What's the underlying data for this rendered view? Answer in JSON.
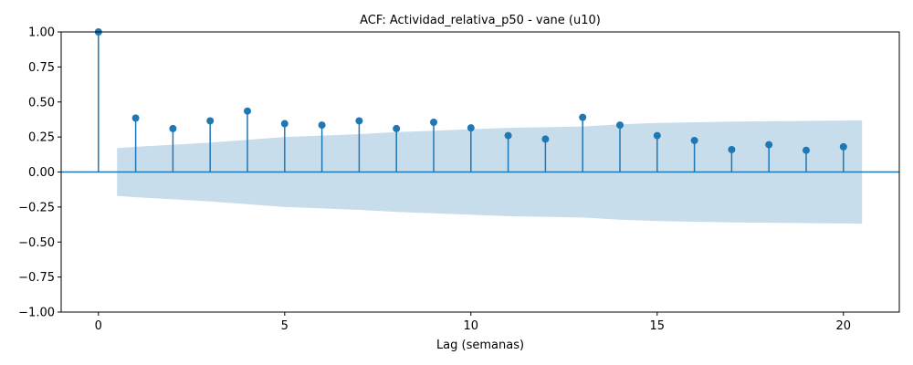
{
  "chart_data": {
    "type": "stem",
    "title": "ACF: Actividad_relativa_p50 - vane (u10)",
    "xlabel": "Lag (semanas)",
    "ylabel": "",
    "xlim": [
      -1,
      21.5
    ],
    "ylim": [
      -1.0,
      1.0
    ],
    "xticks": [
      0,
      5,
      10,
      15,
      20
    ],
    "yticks": [
      -1.0,
      -0.75,
      -0.5,
      -0.25,
      0.0,
      0.25,
      0.5,
      0.75,
      1.0
    ],
    "ytick_labels": [
      "−1.00",
      "−0.75",
      "−0.50",
      "−0.25",
      "0.00",
      "0.25",
      "0.50",
      "0.75",
      "1.00"
    ],
    "grid": false,
    "lags": [
      0,
      1,
      2,
      3,
      4,
      5,
      6,
      7,
      8,
      9,
      10,
      11,
      12,
      13,
      14,
      15,
      16,
      17,
      18,
      19,
      20
    ],
    "acf": [
      1.0,
      0.385,
      0.31,
      0.365,
      0.435,
      0.345,
      0.335,
      0.365,
      0.31,
      0.355,
      0.315,
      0.26,
      0.235,
      0.39,
      0.335,
      0.26,
      0.225,
      0.16,
      0.195,
      0.155,
      0.18
    ],
    "confidence_band": {
      "lags": [
        0.5,
        1,
        2,
        3,
        4,
        5,
        6,
        7,
        8,
        9,
        10,
        11,
        12,
        13,
        14,
        15,
        16,
        17,
        18,
        19,
        20,
        20.5
      ],
      "upper": [
        0.17,
        0.18,
        0.195,
        0.21,
        0.23,
        0.25,
        0.26,
        0.27,
        0.285,
        0.295,
        0.305,
        0.315,
        0.32,
        0.325,
        0.34,
        0.35,
        0.355,
        0.36,
        0.362,
        0.365,
        0.367,
        0.368
      ],
      "lower": [
        -0.17,
        -0.18,
        -0.195,
        -0.21,
        -0.23,
        -0.25,
        -0.26,
        -0.27,
        -0.285,
        -0.295,
        -0.305,
        -0.315,
        -0.32,
        -0.325,
        -0.34,
        -0.35,
        -0.355,
        -0.36,
        -0.362,
        -0.365,
        -0.367,
        -0.368
      ]
    },
    "colors": {
      "stem": "#1f77b4",
      "band": "#1f77b4",
      "axis": "#000000"
    }
  }
}
